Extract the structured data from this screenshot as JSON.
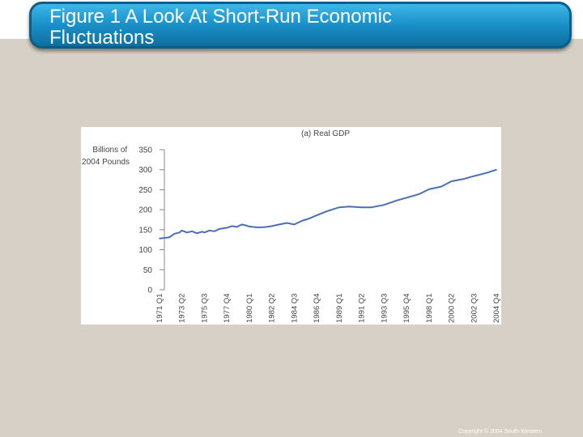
{
  "slide": {
    "title": "Figure 1 A Look At Short-Run Economic\nFluctuations",
    "copyright": "Copyright © 2004 South-Western",
    "accent_color": "#1b93cc",
    "background_color": "#d6d0c6"
  },
  "chart_data": {
    "type": "line",
    "title": "(a) Real GDP",
    "ylabel": "Billions of\n2004 Pounds",
    "xlabel": "",
    "ylim": [
      0,
      350
    ],
    "yticks": [
      0,
      50,
      100,
      150,
      200,
      250,
      300,
      350
    ],
    "xticks": [
      "1971 Q1",
      "1973 Q2",
      "1975 Q3",
      "1977 Q4",
      "1980 Q1",
      "1982 Q2",
      "1984 Q3",
      "1986 Q4",
      "1989 Q1",
      "1991 Q2",
      "1993 Q3",
      "1995 Q4",
      "1998 Q1",
      "2000 Q2",
      "2002 Q3",
      "2004 Q4"
    ],
    "grid": false,
    "line_color": "#4a6fb5",
    "series": [
      {
        "x": [
          "1971 Q1",
          "1972 Q1",
          "1972 Q3",
          "1973 Q1",
          "1973 Q2",
          "1973 Q4",
          "1974 Q2",
          "1974 Q4",
          "1975 Q2",
          "1975 Q3",
          "1976 Q1",
          "1976 Q3",
          "1977 Q1",
          "1977 Q4",
          "1978 Q2",
          "1978 Q4",
          "1979 Q2",
          "1979 Q4",
          "1980 Q1",
          "1980 Q4",
          "1981 Q2",
          "1981 Q4",
          "1982 Q2",
          "1983 Q1",
          "1983 Q4",
          "1984 Q3",
          "1985 Q2",
          "1986 Q1",
          "1986 Q4",
          "1987 Q4",
          "1989 Q1",
          "1990 Q1",
          "1991 Q2",
          "1992 Q2",
          "1993 Q3",
          "1994 Q4",
          "1995 Q4",
          "1997 Q1",
          "1998 Q1",
          "1999 Q2",
          "2000 Q2",
          "2001 Q3",
          "2002 Q3",
          "2003 Q4",
          "2004 Q4"
        ],
        "values": [
          128,
          131,
          140,
          143,
          148,
          143,
          146,
          141,
          145,
          143,
          148,
          146,
          152,
          155,
          159,
          157,
          163,
          160,
          158,
          156,
          156,
          157,
          159,
          163,
          167,
          163,
          172,
          178,
          186,
          196,
          206,
          208,
          206,
          206,
          212,
          223,
          230,
          239,
          251,
          258,
          271,
          277,
          284,
          292,
          300
        ]
      }
    ]
  }
}
